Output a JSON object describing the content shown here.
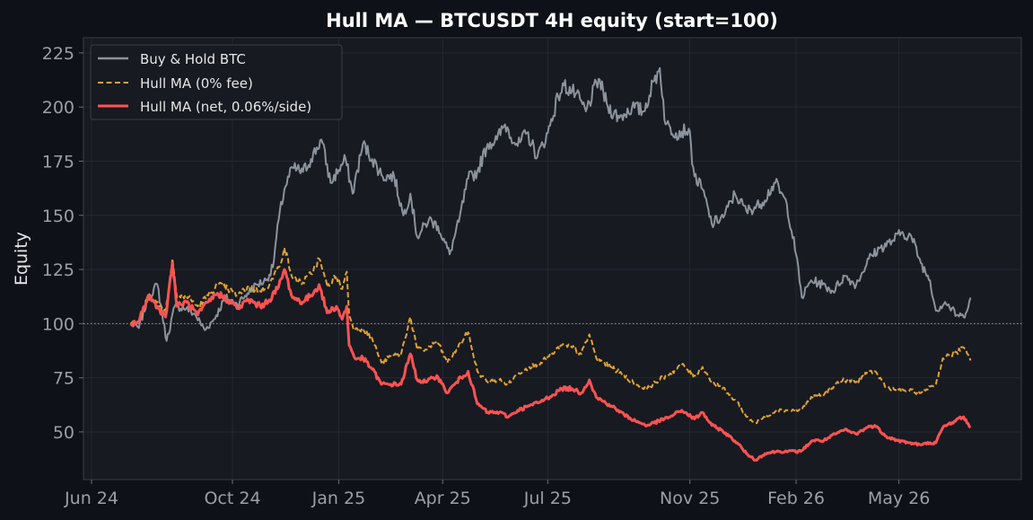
{
  "chart_data": {
    "type": "line",
    "title": "Hull MA — BTCUSDT 4H equity (start=100)",
    "xlabel": "",
    "ylabel": "Equity",
    "x_ticks": [
      "Jun 24",
      "Oct 24",
      "Jan 25",
      "Apr 25",
      "Jul 25",
      "Nov 25",
      "Feb 26",
      "May 26"
    ],
    "x_tick_dates": [
      "2024-06-01",
      "2024-10-01",
      "2025-01-01",
      "2025-04-01",
      "2025-07-01",
      "2025-11-01",
      "2026-02-01",
      "2026-05-01"
    ],
    "y_ticks": [
      50,
      75,
      100,
      125,
      150,
      175,
      200,
      225
    ],
    "xlim": [
      "2024-05-25",
      "2026-08-15"
    ],
    "ylim": [
      28,
      232
    ],
    "reference_line": 100,
    "grid": true,
    "legend_position": "top-left",
    "series": [
      {
        "name": "Buy & Hold BTC",
        "color": "#8c939c",
        "style": "solid",
        "points": [
          [
            "2024-07-05",
            100
          ],
          [
            "2024-07-12",
            98
          ],
          [
            "2024-07-20",
            112
          ],
          [
            "2024-07-28",
            118
          ],
          [
            "2024-08-05",
            92
          ],
          [
            "2024-08-12",
            108
          ],
          [
            "2024-08-22",
            107
          ],
          [
            "2024-08-30",
            104
          ],
          [
            "2024-09-07",
            97
          ],
          [
            "2024-09-15",
            102
          ],
          [
            "2024-09-25",
            112
          ],
          [
            "2024-10-05",
            109
          ],
          [
            "2024-10-14",
            114
          ],
          [
            "2024-10-22",
            118
          ],
          [
            "2024-10-30",
            120
          ],
          [
            "2024-11-05",
            126
          ],
          [
            "2024-11-10",
            148
          ],
          [
            "2024-11-15",
            162
          ],
          [
            "2024-11-22",
            172
          ],
          [
            "2024-12-01",
            170
          ],
          [
            "2024-12-08",
            176
          ],
          [
            "2024-12-17",
            185
          ],
          [
            "2024-12-25",
            165
          ],
          [
            "2025-01-01",
            171
          ],
          [
            "2025-01-07",
            176
          ],
          [
            "2025-01-13",
            160
          ],
          [
            "2025-01-22",
            183
          ],
          [
            "2025-01-30",
            176
          ],
          [
            "2025-02-08",
            168
          ],
          [
            "2025-02-18",
            168
          ],
          [
            "2025-02-26",
            150
          ],
          [
            "2025-03-04",
            160
          ],
          [
            "2025-03-10",
            140
          ],
          [
            "2025-03-20",
            148
          ],
          [
            "2025-03-28",
            145
          ],
          [
            "2025-04-07",
            132
          ],
          [
            "2025-04-15",
            147
          ],
          [
            "2025-04-23",
            167
          ],
          [
            "2025-05-01",
            170
          ],
          [
            "2025-05-10",
            183
          ],
          [
            "2025-05-18",
            185
          ],
          [
            "2025-05-25",
            192
          ],
          [
            "2025-06-05",
            182
          ],
          [
            "2025-06-13",
            188
          ],
          [
            "2025-06-22",
            177
          ],
          [
            "2025-07-01",
            188
          ],
          [
            "2025-07-10",
            205
          ],
          [
            "2025-07-15",
            210
          ],
          [
            "2025-07-25",
            206
          ],
          [
            "2025-08-03",
            198
          ],
          [
            "2025-08-14",
            213
          ],
          [
            "2025-08-22",
            200
          ],
          [
            "2025-09-01",
            195
          ],
          [
            "2025-09-12",
            200
          ],
          [
            "2025-09-22",
            198
          ],
          [
            "2025-10-01",
            212
          ],
          [
            "2025-10-06",
            218
          ],
          [
            "2025-10-11",
            192
          ],
          [
            "2025-10-20",
            188
          ],
          [
            "2025-10-31",
            190
          ],
          [
            "2025-11-05",
            168
          ],
          [
            "2025-11-12",
            162
          ],
          [
            "2025-11-20",
            146
          ],
          [
            "2025-12-01",
            150
          ],
          [
            "2025-12-10",
            160
          ],
          [
            "2025-12-20",
            152
          ],
          [
            "2026-01-01",
            155
          ],
          [
            "2026-01-14",
            165
          ],
          [
            "2026-01-24",
            155
          ],
          [
            "2026-02-01",
            132
          ],
          [
            "2026-02-06",
            112
          ],
          [
            "2026-02-14",
            120
          ],
          [
            "2026-02-24",
            118
          ],
          [
            "2026-03-05",
            115
          ],
          [
            "2026-03-15",
            122
          ],
          [
            "2026-03-25",
            118
          ],
          [
            "2026-04-05",
            130
          ],
          [
            "2026-04-15",
            135
          ],
          [
            "2026-04-25",
            138
          ],
          [
            "2026-05-03",
            142
          ],
          [
            "2026-05-12",
            140
          ],
          [
            "2026-05-20",
            128
          ],
          [
            "2026-05-28",
            120
          ],
          [
            "2026-06-02",
            106
          ],
          [
            "2026-06-10",
            110
          ],
          [
            "2026-06-20",
            104
          ],
          [
            "2026-06-26",
            103
          ],
          [
            "2026-07-02",
            112
          ]
        ]
      },
      {
        "name": "Hull MA (0% fee)",
        "color": "#e0a232",
        "style": "dashed",
        "points": [
          [
            "2024-07-05",
            100
          ],
          [
            "2024-07-12",
            101
          ],
          [
            "2024-07-20",
            113
          ],
          [
            "2024-07-28",
            110
          ],
          [
            "2024-08-04",
            106
          ],
          [
            "2024-08-10",
            130
          ],
          [
            "2024-08-14",
            112
          ],
          [
            "2024-08-22",
            113
          ],
          [
            "2024-09-01",
            108
          ],
          [
            "2024-09-10",
            113
          ],
          [
            "2024-09-18",
            118
          ],
          [
            "2024-09-27",
            116
          ],
          [
            "2024-10-06",
            113
          ],
          [
            "2024-10-15",
            117
          ],
          [
            "2024-10-25",
            115
          ],
          [
            "2024-11-02",
            118
          ],
          [
            "2024-11-10",
            126
          ],
          [
            "2024-11-15",
            135
          ],
          [
            "2024-11-22",
            121
          ],
          [
            "2024-12-01",
            119
          ],
          [
            "2024-12-08",
            123
          ],
          [
            "2024-12-15",
            130
          ],
          [
            "2024-12-22",
            117
          ],
          [
            "2024-12-30",
            122
          ],
          [
            "2025-01-04",
            116
          ],
          [
            "2025-01-08",
            124
          ],
          [
            "2025-01-10",
            104
          ],
          [
            "2025-01-15",
            97
          ],
          [
            "2025-01-22",
            98
          ],
          [
            "2025-01-30",
            93
          ],
          [
            "2025-02-07",
            82
          ],
          [
            "2025-02-15",
            85
          ],
          [
            "2025-02-24",
            86
          ],
          [
            "2025-03-04",
            103
          ],
          [
            "2025-03-10",
            88
          ],
          [
            "2025-03-18",
            88
          ],
          [
            "2025-03-27",
            92
          ],
          [
            "2025-04-05",
            82
          ],
          [
            "2025-04-13",
            88
          ],
          [
            "2025-04-23",
            96
          ],
          [
            "2025-05-01",
            78
          ],
          [
            "2025-05-10",
            73
          ],
          [
            "2025-05-20",
            74
          ],
          [
            "2025-05-28",
            72
          ],
          [
            "2025-06-05",
            77
          ],
          [
            "2025-06-15",
            80
          ],
          [
            "2025-06-25",
            82
          ],
          [
            "2025-07-05",
            86
          ],
          [
            "2025-07-13",
            90
          ],
          [
            "2025-07-22",
            89
          ],
          [
            "2025-07-30",
            86
          ],
          [
            "2025-08-06",
            95
          ],
          [
            "2025-08-12",
            84
          ],
          [
            "2025-08-25",
            80
          ],
          [
            "2025-09-05",
            76
          ],
          [
            "2025-09-15",
            72
          ],
          [
            "2025-09-25",
            70
          ],
          [
            "2025-10-05",
            74
          ],
          [
            "2025-10-15",
            77
          ],
          [
            "2025-10-25",
            81
          ],
          [
            "2025-11-05",
            76
          ],
          [
            "2025-11-12",
            80
          ],
          [
            "2025-11-20",
            73
          ],
          [
            "2025-11-28",
            71
          ],
          [
            "2025-12-05",
            67
          ],
          [
            "2025-12-12",
            64
          ],
          [
            "2025-12-20",
            57
          ],
          [
            "2025-12-28",
            54
          ],
          [
            "2026-01-05",
            57
          ],
          [
            "2026-01-15",
            60
          ],
          [
            "2026-01-25",
            60
          ],
          [
            "2026-02-05",
            60
          ],
          [
            "2026-02-15",
            66
          ],
          [
            "2026-02-25",
            67
          ],
          [
            "2026-03-07",
            72
          ],
          [
            "2026-03-15",
            74
          ],
          [
            "2026-03-25",
            73
          ],
          [
            "2026-04-03",
            77
          ],
          [
            "2026-04-10",
            78
          ],
          [
            "2026-04-20",
            71
          ],
          [
            "2026-04-30",
            69
          ],
          [
            "2026-05-10",
            69
          ],
          [
            "2026-05-20",
            68
          ],
          [
            "2026-05-28",
            71
          ],
          [
            "2026-06-02",
            72
          ],
          [
            "2026-06-08",
            84
          ],
          [
            "2026-06-18",
            86
          ],
          [
            "2026-06-26",
            89
          ],
          [
            "2026-07-02",
            83
          ]
        ]
      },
      {
        "name": "Hull MA (net, 0.06%/side)",
        "color": "#ff5252",
        "style": "solid",
        "points": [
          [
            "2024-07-05",
            100
          ],
          [
            "2024-07-12",
            101
          ],
          [
            "2024-07-20",
            113
          ],
          [
            "2024-07-28",
            108
          ],
          [
            "2024-08-04",
            103
          ],
          [
            "2024-08-10",
            128
          ],
          [
            "2024-08-14",
            108
          ],
          [
            "2024-08-22",
            110
          ],
          [
            "2024-09-01",
            104
          ],
          [
            "2024-09-10",
            110
          ],
          [
            "2024-09-18",
            114
          ],
          [
            "2024-09-27",
            111
          ],
          [
            "2024-10-06",
            107
          ],
          [
            "2024-10-15",
            111
          ],
          [
            "2024-10-25",
            108
          ],
          [
            "2024-11-02",
            111
          ],
          [
            "2024-11-10",
            117
          ],
          [
            "2024-11-15",
            125
          ],
          [
            "2024-11-22",
            112
          ],
          [
            "2024-12-01",
            110
          ],
          [
            "2024-12-08",
            113
          ],
          [
            "2024-12-15",
            118
          ],
          [
            "2024-12-22",
            105
          ],
          [
            "2024-12-30",
            108
          ],
          [
            "2025-01-04",
            102
          ],
          [
            "2025-01-08",
            108
          ],
          [
            "2025-01-10",
            90
          ],
          [
            "2025-01-15",
            84
          ],
          [
            "2025-01-22",
            84
          ],
          [
            "2025-01-30",
            79
          ],
          [
            "2025-02-07",
            72
          ],
          [
            "2025-02-15",
            72
          ],
          [
            "2025-02-24",
            72
          ],
          [
            "2025-03-04",
            86
          ],
          [
            "2025-03-10",
            74
          ],
          [
            "2025-03-18",
            73
          ],
          [
            "2025-03-27",
            76
          ],
          [
            "2025-04-05",
            68
          ],
          [
            "2025-04-13",
            73
          ],
          [
            "2025-04-23",
            78
          ],
          [
            "2025-05-01",
            63
          ],
          [
            "2025-05-10",
            59
          ],
          [
            "2025-05-20",
            59
          ],
          [
            "2025-05-28",
            57
          ],
          [
            "2025-06-05",
            60
          ],
          [
            "2025-06-15",
            62
          ],
          [
            "2025-06-25",
            64
          ],
          [
            "2025-07-05",
            67
          ],
          [
            "2025-07-13",
            70
          ],
          [
            "2025-07-22",
            70
          ],
          [
            "2025-07-30",
            68
          ],
          [
            "2025-08-06",
            74
          ],
          [
            "2025-08-12",
            66
          ],
          [
            "2025-08-25",
            62
          ],
          [
            "2025-09-05",
            58
          ],
          [
            "2025-09-15",
            55
          ],
          [
            "2025-09-25",
            53
          ],
          [
            "2025-10-05",
            55
          ],
          [
            "2025-10-15",
            57
          ],
          [
            "2025-10-25",
            60
          ],
          [
            "2025-11-05",
            56
          ],
          [
            "2025-11-12",
            59
          ],
          [
            "2025-11-20",
            53
          ],
          [
            "2025-11-28",
            51
          ],
          [
            "2025-12-05",
            48
          ],
          [
            "2025-12-12",
            45
          ],
          [
            "2025-12-20",
            40
          ],
          [
            "2025-12-28",
            37
          ],
          [
            "2026-01-05",
            40
          ],
          [
            "2026-01-15",
            41
          ],
          [
            "2026-01-25",
            41
          ],
          [
            "2026-02-05",
            41
          ],
          [
            "2026-02-15",
            46
          ],
          [
            "2026-02-25",
            46
          ],
          [
            "2026-03-07",
            49
          ],
          [
            "2026-03-15",
            51
          ],
          [
            "2026-03-25",
            49
          ],
          [
            "2026-04-03",
            52
          ],
          [
            "2026-04-10",
            53
          ],
          [
            "2026-04-20",
            48
          ],
          [
            "2026-04-30",
            46
          ],
          [
            "2026-05-10",
            45
          ],
          [
            "2026-05-20",
            44
          ],
          [
            "2026-05-28",
            45
          ],
          [
            "2026-06-02",
            45
          ],
          [
            "2026-06-08",
            52
          ],
          [
            "2026-06-18",
            55
          ],
          [
            "2026-06-26",
            57
          ],
          [
            "2026-07-02",
            52
          ]
        ]
      }
    ]
  }
}
